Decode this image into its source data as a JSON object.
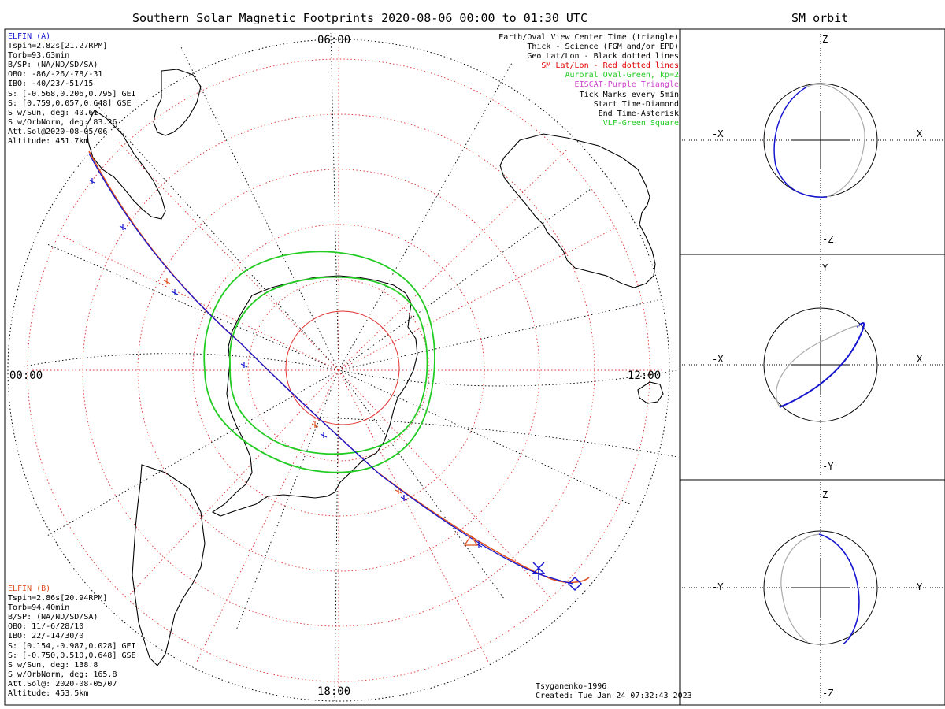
{
  "title": "Southern Solar Magnetic Footprints 2020-08-06 00:00 to 01:30 UTC",
  "orbit_title": "SM orbit",
  "map": {
    "time_labels": {
      "top": "06:00",
      "left": "00:00",
      "right": "12:00",
      "bottom": "18:00"
    },
    "auroral_oval_color": "#22cc22",
    "sm_grid_color": "#e03030",
    "geo_grid_color": "#000000"
  },
  "elfin_a": {
    "name": "ELFIN (A)",
    "color": "#1515d0",
    "lines": [
      "Tspin=2.82s[21.27RPM]",
      "Torb=93.63min",
      "B/SP: (NA/ND/SD/SA)",
      "OBO: -86/-26/-78/-31",
      "IBO: -40/23/-51/15",
      "S: [-0.568,0.206,0.795] GEI",
      "S: [0.759,0.057,0.648] GSE",
      "S w/Sun, deg: 40.61",
      "S w/OrbNorm, deg: 83.26",
      "Att.Sol@2020-08-05/06",
      "Altitude: 451.7km"
    ]
  },
  "elfin_b": {
    "name": "ELFIN (B)",
    "color": "#e05020",
    "lines": [
      "Tspin=2.86s[20.94RPM]",
      "Torb=94.40min",
      "B/SP: (NA/ND/SD/SA)",
      "OBO: 11/-6/28/10",
      "IBO: 22/-14/30/0",
      "S: [0.154,-0.987,0.028] GEI",
      "S: [-0.750,0.510,0.648] GSE",
      "S w/Sun, deg: 138.8",
      "S w/OrbNorm, deg: 165.8",
      "Att.Sol@: 2020-08-05/07",
      "Altitude: 453.5km"
    ]
  },
  "legend": [
    {
      "text": "Earth/Oval View Center Time (triangle)",
      "color": "#000000"
    },
    {
      "text": "Thick - Science (FGM and/or EPD)",
      "color": "#000000"
    },
    {
      "text": "Geo Lat/Lon - Black dotted lines",
      "color": "#000000"
    },
    {
      "text": "SM Lat/Lon - Red dotted lines",
      "color": "#e00000"
    },
    {
      "text": "Auroral Oval-Green, kp=2",
      "color": "#22cc22"
    },
    {
      "text": "EISCAT-Purple Triangle",
      "color": "#cc44cc"
    },
    {
      "text": "Tick Marks every 5min",
      "color": "#000000"
    },
    {
      "text": "Start Time-Diamond",
      "color": "#000000"
    },
    {
      "text": "End Time-Asterisk",
      "color": "#000000"
    },
    {
      "text": "VLF-Green Square",
      "color": "#22cc22"
    }
  ],
  "credits": {
    "model": "Tsyganenko-1996",
    "created": "Created: Tue Jan 24 07:32:43 2023"
  },
  "orbit_panels": [
    {
      "top": "Z",
      "bottom": "-Z",
      "left": "-X",
      "right": "X"
    },
    {
      "top": "Y",
      "bottom": "-Y",
      "left": "-X",
      "right": "X"
    },
    {
      "top": "Z",
      "bottom": "-Z",
      "left": "-Y",
      "right": "Y"
    }
  ]
}
